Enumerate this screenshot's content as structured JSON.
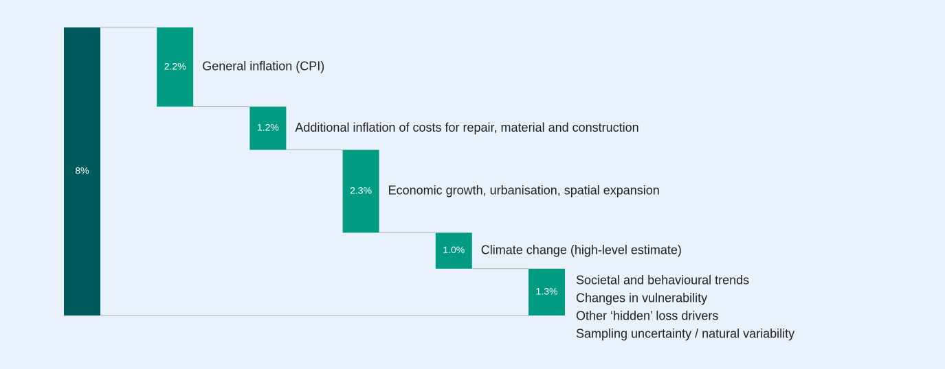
{
  "chart_data": {
    "type": "waterfall",
    "categories": [
      null,
      "General inflation (CPI)",
      "Additional inflation of costs for repair, material and construction",
      "Economic growth, urbanisation, spatial expansion",
      "Climate change (high-level estimate)",
      [
        "Societal and behavioural trends",
        "Changes in vulnerability",
        "Other ‘hidden’ loss drivers",
        "Sampling uncertainty / natural variability"
      ]
    ],
    "values": [
      8,
      2.2,
      1.2,
      2.3,
      1.0,
      1.3
    ],
    "value_labels": [
      "8%",
      "2.2%",
      "1.2%",
      "2.3%",
      "1.0%",
      "1.3%"
    ],
    "colors": [
      "#005a5c",
      "#009b82",
      "#009b82",
      "#009b82",
      "#009b82",
      "#009b82"
    ]
  }
}
